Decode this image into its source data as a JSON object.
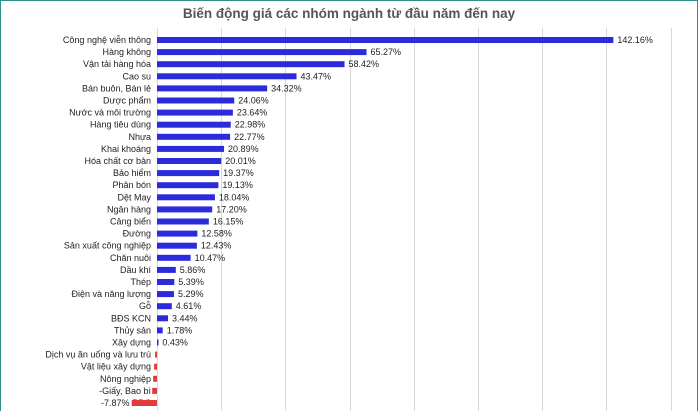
{
  "chart_data": {
    "type": "bar",
    "orientation": "horizontal",
    "title": "Biến động giá các nhóm ngành từ đầu năm đến nay",
    "xlabel": "",
    "ylabel": "",
    "grid": true,
    "positive_color": "#2b2bdb",
    "negative_color": "#e03a3a",
    "categories": [
      "Công nghệ viễn thông",
      "Hàng không",
      "Vận tải hàng hóa",
      "Cao su",
      "Bán buôn, Bán lẻ",
      "Dược phẩm",
      "Nước và môi trường",
      "Hàng tiêu dùng",
      "Nhựa",
      "Khai khoáng",
      "Hóa chất cơ bản",
      "Bảo hiểm",
      "Phân bón",
      "Dệt May",
      "Ngân hàng",
      "Cảng biển",
      "Đường",
      "Sản xuất công nghiệp",
      "Chăn nuôi",
      "Dầu khí",
      "Thép",
      "Điện và năng lượng",
      "Gỗ",
      "BĐS KCN",
      "Thủy sản",
      "Xây dựng",
      "Dịch vụ ăn uống và lưu trú",
      "Vật liệu xây dựng",
      "Nông nghiệp",
      "-Giấy, Bao bì",
      "BĐS"
    ],
    "values": [
      142.16,
      65.27,
      58.42,
      43.47,
      34.32,
      24.06,
      23.64,
      22.98,
      22.77,
      20.89,
      20.01,
      19.37,
      19.13,
      18.04,
      17.2,
      16.15,
      12.58,
      12.43,
      10.47,
      5.86,
      5.39,
      5.29,
      4.61,
      3.44,
      1.78,
      0.43,
      -0.6,
      -0.9,
      -1.2,
      -1.5,
      -7.87
    ],
    "value_labels": [
      "142.16%",
      "65.27%",
      "58.42%",
      "43.47%",
      "34.32%",
      "24.06%",
      "23.64%",
      "22.98%",
      "22.77%",
      "20.89%",
      "20.01%",
      "19.37%",
      "19.13%",
      "18.04%",
      "17.20%",
      "16.15%",
      "12.58%",
      "12.43%",
      "10.47%",
      "5.86%",
      "5.39%",
      "5.29%",
      "4.61%",
      "3.44%",
      "1.78%",
      "0.43%",
      "",
      "",
      "",
      "",
      "-7.87%"
    ],
    "xlim": [
      -10,
      160
    ]
  }
}
